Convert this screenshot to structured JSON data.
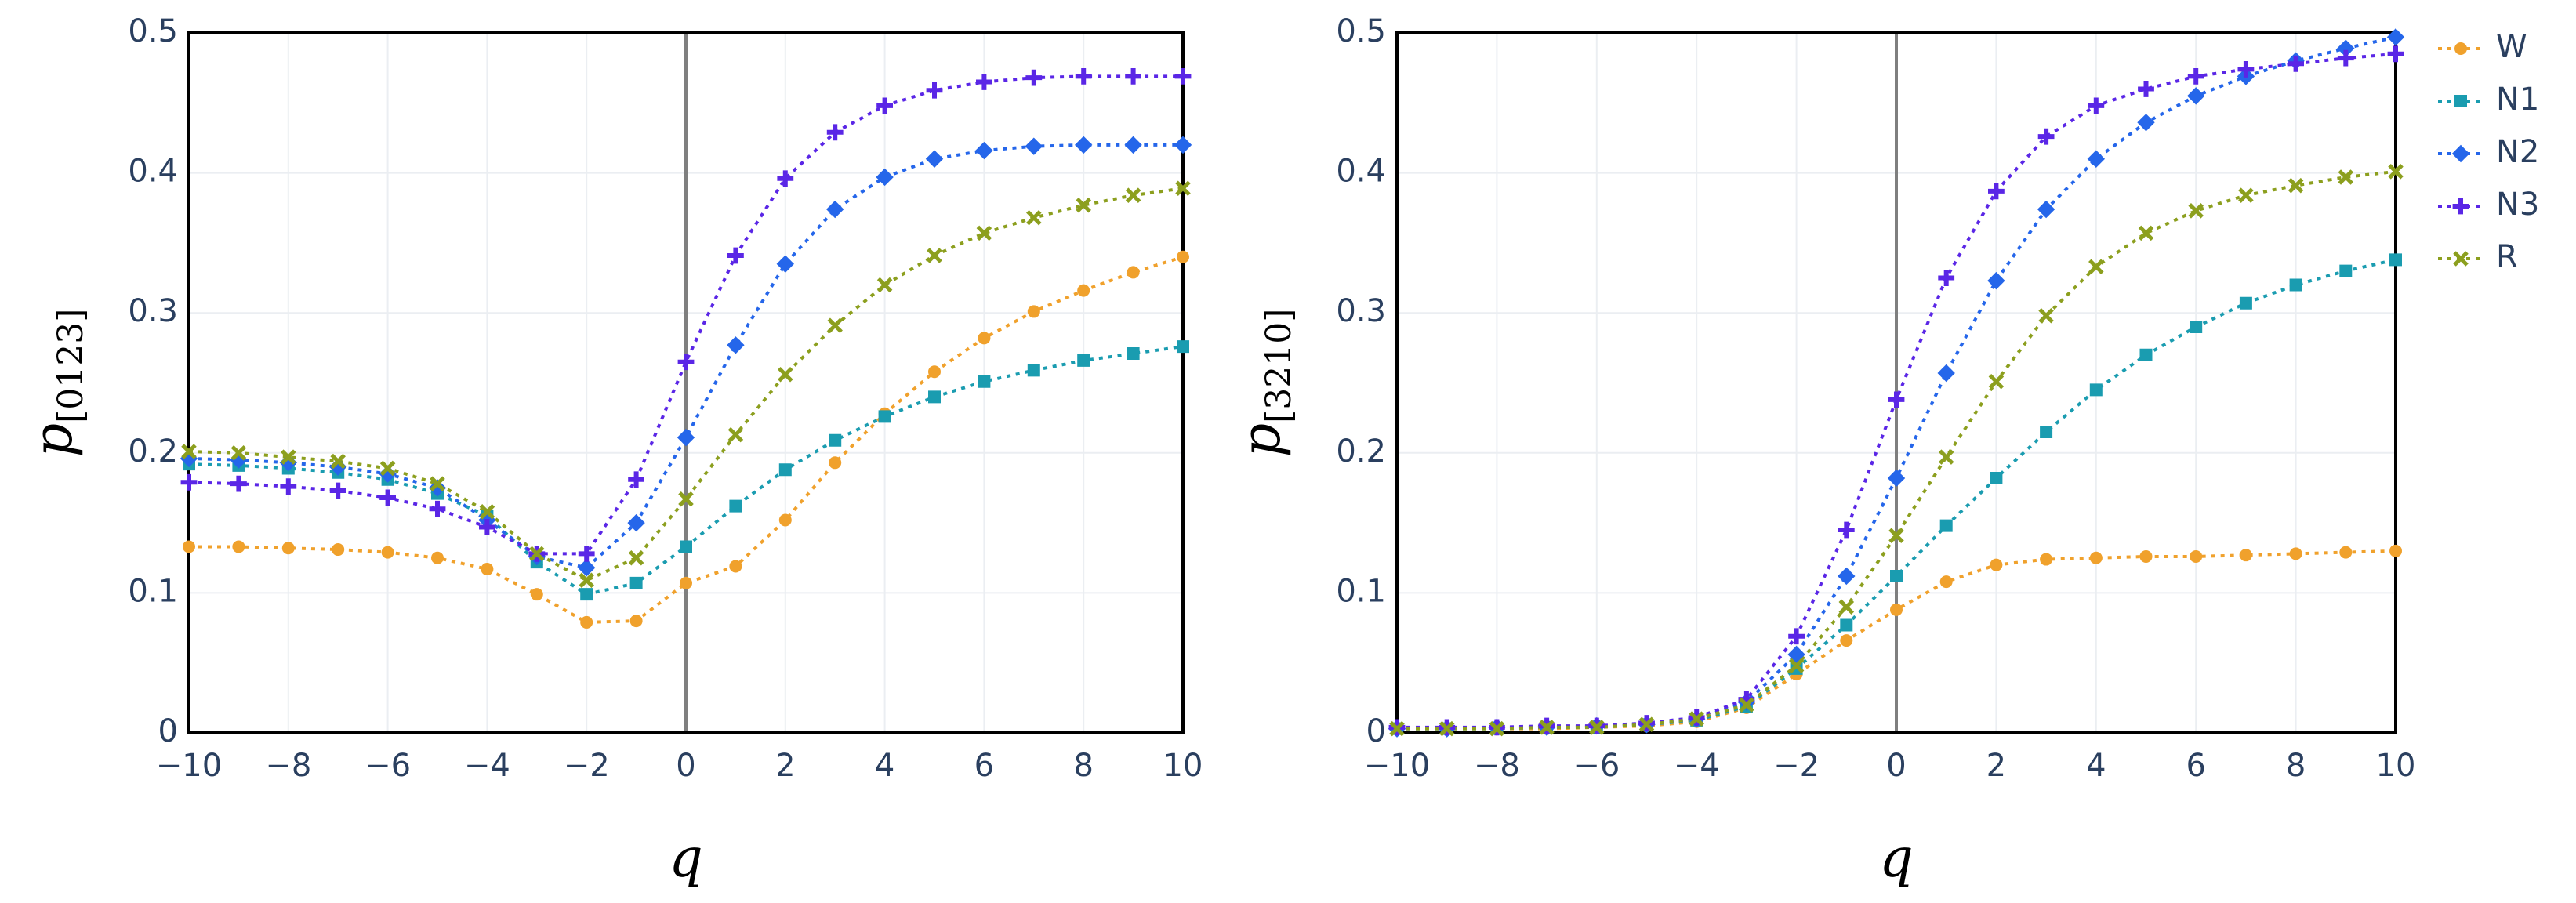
{
  "chart_data": [
    {
      "type": "line",
      "x": [
        -10,
        -9,
        -8,
        -7,
        -6,
        -5,
        -4,
        -3,
        -2,
        -1,
        0,
        1,
        2,
        3,
        4,
        5,
        6,
        7,
        8,
        9,
        10
      ],
      "x_label": "q",
      "y_label": "p",
      "y_label_sub": "[0123]",
      "xlim": [
        -10,
        10
      ],
      "ylim": [
        0,
        0.5
      ],
      "xticks": [
        {
          "value": -10,
          "label": "−10"
        },
        {
          "value": -8,
          "label": "−8"
        },
        {
          "value": -6,
          "label": "−6"
        },
        {
          "value": -4,
          "label": "−4"
        },
        {
          "value": -2,
          "label": "−2"
        },
        0,
        2,
        4,
        6,
        8,
        10
      ],
      "yticks": [
        0,
        0.1,
        0.2,
        0.3,
        0.4,
        0.5
      ],
      "grid": true,
      "zeroline": true,
      "legend": "right",
      "series": [
        {
          "name": "W",
          "color": "#f0a12c",
          "marker": "circle",
          "values": [
            0.133,
            0.133,
            0.132,
            0.131,
            0.129,
            0.125,
            0.117,
            0.099,
            0.079,
            0.08,
            0.107,
            0.119,
            0.152,
            0.193,
            0.228,
            0.258,
            0.282,
            0.301,
            0.316,
            0.329,
            0.34
          ]
        },
        {
          "name": "N1",
          "color": "#1a9cb0",
          "marker": "square",
          "values": [
            0.192,
            0.191,
            0.189,
            0.186,
            0.181,
            0.171,
            0.155,
            0.122,
            0.099,
            0.107,
            0.133,
            0.162,
            0.188,
            0.209,
            0.226,
            0.24,
            0.251,
            0.259,
            0.266,
            0.271,
            0.276
          ]
        },
        {
          "name": "N2",
          "color": "#2566ea",
          "marker": "diamond",
          "values": [
            0.196,
            0.195,
            0.193,
            0.19,
            0.185,
            0.175,
            0.152,
            0.126,
            0.118,
            0.15,
            0.211,
            0.277,
            0.335,
            0.374,
            0.397,
            0.41,
            0.416,
            0.419,
            0.42,
            0.42,
            0.42
          ]
        },
        {
          "name": "N3",
          "color": "#5a26e6",
          "marker": "cross",
          "values": [
            0.179,
            0.178,
            0.176,
            0.173,
            0.168,
            0.16,
            0.147,
            0.128,
            0.128,
            0.181,
            0.265,
            0.341,
            0.396,
            0.429,
            0.448,
            0.459,
            0.465,
            0.468,
            0.469,
            0.469,
            0.469
          ]
        },
        {
          "name": "R",
          "color": "#8c9f1e",
          "marker": "x",
          "values": [
            0.201,
            0.2,
            0.197,
            0.194,
            0.189,
            0.178,
            0.158,
            0.128,
            0.109,
            0.125,
            0.167,
            0.213,
            0.256,
            0.291,
            0.32,
            0.341,
            0.357,
            0.368,
            0.377,
            0.384,
            0.389
          ]
        }
      ]
    },
    {
      "type": "line",
      "x": [
        -10,
        -9,
        -8,
        -7,
        -6,
        -5,
        -4,
        -3,
        -2,
        -1,
        0,
        1,
        2,
        3,
        4,
        5,
        6,
        7,
        8,
        9,
        10
      ],
      "x_label": "q",
      "y_label": "p",
      "y_label_sub": "[3210]",
      "xlim": [
        -10,
        10
      ],
      "ylim": [
        0,
        0.5
      ],
      "xticks": [
        {
          "value": -10,
          "label": "−10"
        },
        {
          "value": -8,
          "label": "−8"
        },
        {
          "value": -6,
          "label": "−6"
        },
        {
          "value": -4,
          "label": "−4"
        },
        {
          "value": -2,
          "label": "−2"
        },
        0,
        2,
        4,
        6,
        8,
        10
      ],
      "yticks": [
        0,
        0.1,
        0.2,
        0.3,
        0.4,
        0.5
      ],
      "grid": true,
      "zeroline": true,
      "series": [
        {
          "color": "#f0a12c",
          "marker": "circle",
          "values": [
            0.003,
            0.003,
            0.003,
            0.003,
            0.004,
            0.005,
            0.008,
            0.018,
            0.042,
            0.066,
            0.088,
            0.108,
            0.12,
            0.124,
            0.125,
            0.126,
            0.126,
            0.127,
            0.128,
            0.129,
            0.13
          ]
        },
        {
          "color": "#1a9cb0",
          "marker": "square",
          "values": [
            0.003,
            0.003,
            0.003,
            0.004,
            0.004,
            0.006,
            0.009,
            0.019,
            0.046,
            0.077,
            0.112,
            0.148,
            0.182,
            0.215,
            0.245,
            0.27,
            0.29,
            0.307,
            0.32,
            0.33,
            0.338
          ]
        },
        {
          "color": "#2566ea",
          "marker": "diamond",
          "values": [
            0.003,
            0.003,
            0.004,
            0.004,
            0.005,
            0.006,
            0.01,
            0.022,
            0.056,
            0.112,
            0.182,
            0.257,
            0.323,
            0.374,
            0.41,
            0.436,
            0.455,
            0.469,
            0.48,
            0.489,
            0.497
          ]
        },
        {
          "color": "#5a26e6",
          "marker": "cross",
          "values": [
            0.004,
            0.004,
            0.004,
            0.005,
            0.005,
            0.007,
            0.011,
            0.024,
            0.069,
            0.145,
            0.238,
            0.325,
            0.387,
            0.426,
            0.448,
            0.46,
            0.469,
            0.474,
            0.478,
            0.482,
            0.485
          ]
        },
        {
          "color": "#8c9f1e",
          "marker": "x",
          "values": [
            0.003,
            0.003,
            0.003,
            0.004,
            0.004,
            0.006,
            0.01,
            0.02,
            0.048,
            0.09,
            0.141,
            0.197,
            0.251,
            0.298,
            0.333,
            0.357,
            0.373,
            0.384,
            0.391,
            0.397,
            0.401
          ]
        }
      ]
    }
  ]
}
